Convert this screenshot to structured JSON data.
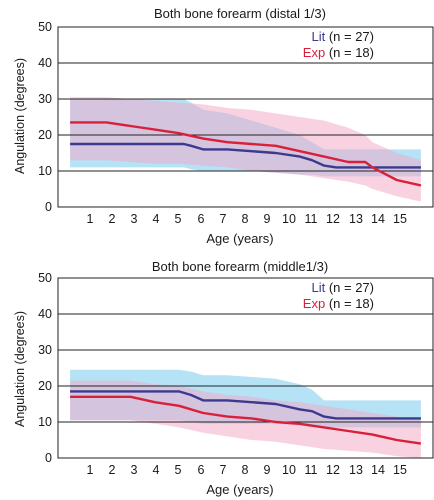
{
  "chart_data": [
    {
      "type": "line",
      "title": "Both bone forearm (distal 1/3)",
      "xlabel": "Age (years)",
      "ylabel": "Angulation (degrees)",
      "xlim": [
        0,
        15.5
      ],
      "ylim": [
        0,
        50
      ],
      "x_ticks": [
        1,
        2,
        3,
        4,
        5,
        6,
        7,
        8,
        9,
        10,
        11,
        12,
        13,
        14,
        15
      ],
      "y_ticks": [
        0,
        10,
        20,
        30,
        40,
        50
      ],
      "grid": "horizontal",
      "legend_position": "top-right",
      "series": [
        {
          "name": "Lit",
          "legend_suffix": "(n = 27)",
          "color": "#3b3a8f",
          "band_color": "#6ec6ee",
          "x": [
            0.5,
            5.2,
            5.5,
            6,
            7,
            8,
            9,
            10,
            10.5,
            11,
            11.5,
            12,
            13,
            14,
            15
          ],
          "y": [
            17.5,
            17.5,
            17,
            16,
            16,
            15.5,
            15,
            14,
            13,
            11.5,
            11,
            11,
            11,
            11,
            11
          ],
          "band_upper": [
            30,
            30,
            29,
            27,
            26,
            24,
            22,
            20,
            18,
            16,
            16,
            16,
            16,
            16,
            16
          ],
          "band_lower": [
            11,
            11,
            10.5,
            10,
            10,
            10,
            9.5,
            9,
            9,
            8.5,
            8.5,
            8.5,
            8.5,
            8.5,
            8.5
          ]
        },
        {
          "name": "Exp",
          "legend_suffix": "(n = 18)",
          "color": "#d8203a",
          "band_color": "#f4a6c4",
          "x": [
            0.5,
            2,
            3,
            4,
            5,
            6,
            7,
            8,
            9,
            10,
            11,
            12,
            12.7,
            13,
            14,
            15
          ],
          "y": [
            23.5,
            23.5,
            22.5,
            21.5,
            20.5,
            19,
            18,
            17.5,
            17,
            15.5,
            14,
            12.5,
            12.5,
            11,
            7.5,
            6
          ],
          "band_upper": [
            30.5,
            30.5,
            30,
            29.5,
            29,
            28.5,
            27.5,
            27,
            26,
            25,
            24,
            22,
            20,
            18,
            15,
            13
          ],
          "band_lower": [
            13,
            13,
            12.5,
            12,
            12,
            11.5,
            11,
            10,
            9.5,
            9,
            8,
            7,
            6,
            5,
            3,
            1.5
          ]
        }
      ]
    },
    {
      "type": "line",
      "title": "Both bone forearm (middle1/3)",
      "xlabel": "Age (years)",
      "ylabel": "Angulation (degrees)",
      "xlim": [
        0,
        15.5
      ],
      "ylim": [
        0,
        50
      ],
      "x_ticks": [
        1,
        2,
        3,
        4,
        5,
        6,
        7,
        8,
        9,
        10,
        11,
        12,
        13,
        14,
        15
      ],
      "y_ticks": [
        0,
        10,
        20,
        30,
        40,
        50
      ],
      "grid": "horizontal",
      "legend_position": "top-right",
      "series": [
        {
          "name": "Lit",
          "legend_suffix": "(n = 27)",
          "color": "#3b3a8f",
          "band_color": "#6ec6ee",
          "x": [
            0.5,
            5,
            5.5,
            6,
            7,
            8,
            9,
            10,
            10.5,
            11,
            11.5,
            12,
            13,
            14,
            15
          ],
          "y": [
            18.5,
            18.5,
            17.5,
            16,
            16,
            15.5,
            15,
            13.5,
            13,
            11.5,
            11,
            11,
            11,
            11,
            11
          ],
          "band_upper": [
            24.5,
            24.5,
            24,
            23,
            23,
            22.5,
            22,
            20.5,
            19,
            16,
            16,
            16,
            16,
            16,
            16
          ],
          "band_lower": [
            10.5,
            10.5,
            10,
            9.5,
            9.5,
            9.5,
            9.5,
            9,
            8.5,
            8.5,
            8.5,
            8.5,
            8.5,
            8.5,
            8.5
          ]
        },
        {
          "name": "Exp",
          "legend_suffix": "(n = 18)",
          "color": "#d8203a",
          "band_color": "#f4a6c4",
          "x": [
            0.5,
            3,
            4,
            5,
            6,
            7,
            8,
            9,
            10,
            11,
            12,
            13,
            14,
            15
          ],
          "y": [
            17,
            17,
            15.5,
            14.5,
            12.5,
            11.5,
            11,
            10,
            9.5,
            8.5,
            7.5,
            6.5,
            5,
            4
          ],
          "band_upper": [
            21.5,
            21.5,
            20.5,
            20,
            18.5,
            17.5,
            17,
            16,
            15.5,
            14.5,
            13.5,
            12.5,
            11.5,
            10.5
          ],
          "band_lower": [
            10.5,
            10.5,
            9.5,
            8.5,
            7,
            6,
            5,
            4.5,
            3.5,
            2.5,
            2,
            1.5,
            0.5,
            0
          ]
        }
      ]
    }
  ]
}
